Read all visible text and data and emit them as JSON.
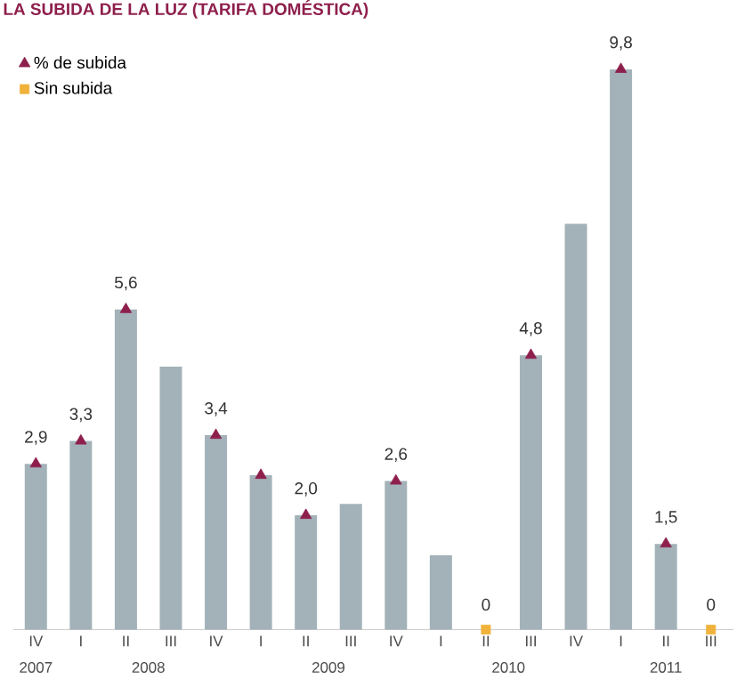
{
  "chart_data": {
    "type": "bar",
    "title": "LA SUBIDA DE LA LUZ (TARIFA DOMÉSTICA)",
    "categories": [
      "IV",
      "I",
      "II",
      "III",
      "IV",
      "I",
      "II",
      "III",
      "IV",
      "I",
      "II",
      "III",
      "IV",
      "I",
      "II",
      "III"
    ],
    "series": [
      {
        "color": "#a3b2b9",
        "values": [
          2.9,
          3.3,
          5.6,
          4.6,
          3.4,
          2.7,
          2.0,
          2.2,
          2.6,
          1.3,
          0,
          4.8,
          7.1,
          9.8,
          1.5,
          0
        ],
        "value_labels": [
          "2,9",
          "3,3",
          "5,6",
          null,
          "3,4",
          null,
          "2,0",
          null,
          "2,6",
          null,
          "0",
          "4,8",
          null,
          "9,8",
          "1,5",
          "0"
        ]
      },
      {
        "type": "scatter",
        "name": "% de subida",
        "color": "#8e1f4c",
        "marker": "triangle",
        "values": [
          2.9,
          3.3,
          5.6,
          null,
          3.4,
          2.7,
          2.0,
          null,
          2.6,
          null,
          null,
          4.8,
          null,
          9.8,
          1.5,
          null
        ]
      },
      {
        "type": "scatter",
        "name": "Sin subida",
        "color": "#f0b23a",
        "marker": "square",
        "values": [
          null,
          null,
          null,
          null,
          null,
          null,
          null,
          null,
          null,
          null,
          0,
          null,
          null,
          null,
          null,
          0
        ]
      }
    ],
    "annotations": [
      "2007",
      "2008",
      "2009",
      "2010",
      "2011"
    ],
    "legend": "top left"
  }
}
